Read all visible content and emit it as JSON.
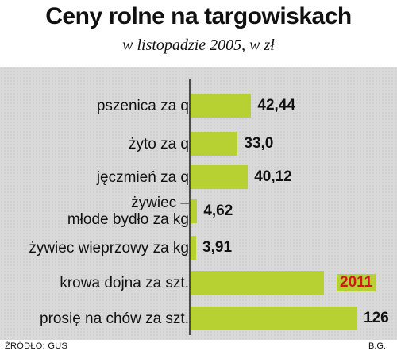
{
  "chart_data": {
    "type": "bar",
    "orientation": "horizontal",
    "title": "Ceny rolne na targowiskach",
    "subtitle": "w listopadzie 2005, w zł",
    "categories": [
      "pszenica za q",
      "żyto za q",
      "jęczmień za q",
      "żywiec – młode bydło za kg",
      "żywiec wieprzowy za kg",
      "krowa dojna za szt.",
      "prosię na chów za szt."
    ],
    "category_lines": [
      [
        "pszenica za q"
      ],
      [
        "żyto za q"
      ],
      [
        "jęczmień za q"
      ],
      [
        "żywiec –",
        "młode bydło za kg"
      ],
      [
        "żywiec wieprzowy za kg"
      ],
      [
        "krowa dojna za szt."
      ],
      [
        "prosię na chów za szt."
      ]
    ],
    "values": [
      42.44,
      33.0,
      40.12,
      4.62,
      3.91,
      2011,
      126
    ],
    "value_labels": [
      "42,44",
      "33,0",
      "40,12",
      "4,62",
      "3,91",
      "2011",
      "126"
    ],
    "broken_bars": [
      5
    ],
    "highlight_color": "#d6141f",
    "bar_color": "#b7d132",
    "source": "ŹRÓDŁO: GUS",
    "author": "B.G."
  }
}
